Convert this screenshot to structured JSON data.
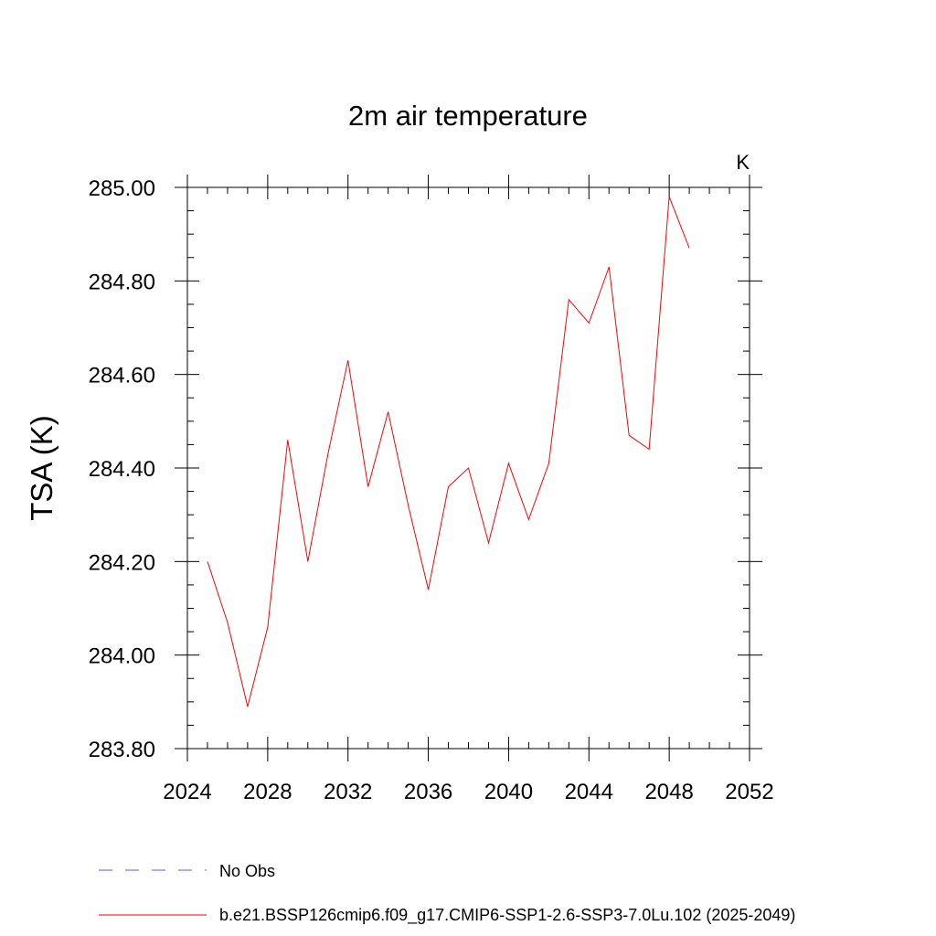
{
  "chart_data": {
    "type": "line",
    "title": "2m air temperature",
    "units_label": "K",
    "ylabel": "TSA  (K)",
    "xlabel": "",
    "xlim": [
      2024,
      2052
    ],
    "ylim": [
      283.8,
      285.0
    ],
    "x_ticks": [
      2024,
      2028,
      2032,
      2036,
      2040,
      2044,
      2048,
      2052
    ],
    "x_tick_labels": [
      "2024",
      "2028",
      "2032",
      "2036",
      "2040",
      "2044",
      "2048",
      "2052"
    ],
    "y_ticks": [
      283.8,
      284.0,
      284.2,
      284.4,
      284.6,
      284.8,
      285.0
    ],
    "y_tick_labels": [
      "283.80",
      "284.00",
      "284.20",
      "284.40",
      "284.60",
      "284.80",
      "285.00"
    ],
    "grid": false,
    "legend_position": "bottom",
    "series": [
      {
        "name": "b.e21.BSSP126cmip6.f09_g17.CMIP6-SSP1-2.6-SSP3-7.0Lu.102 (2025-2049)",
        "color": "#ff0000",
        "line_style": "solid",
        "x": [
          2025,
          2026,
          2027,
          2028,
          2029,
          2030,
          2031,
          2032,
          2033,
          2034,
          2035,
          2036,
          2037,
          2038,
          2039,
          2040,
          2041,
          2042,
          2043,
          2044,
          2045,
          2046,
          2047,
          2048,
          2049
        ],
        "y": [
          284.2,
          284.07,
          283.89,
          284.06,
          284.46,
          284.2,
          284.43,
          284.63,
          284.36,
          284.52,
          284.32,
          284.14,
          284.36,
          284.4,
          284.24,
          284.41,
          284.29,
          284.41,
          284.76,
          284.71,
          284.83,
          284.47,
          284.44,
          284.98,
          284.87
        ]
      }
    ],
    "legend": [
      {
        "label": "No Obs",
        "color": "#6a5acd",
        "line_style": "dashed"
      },
      {
        "label": "b.e21.BSSP126cmip6.f09_g17.CMIP6-SSP1-2.6-SSP3-7.0Lu.102 (2025-2049)",
        "color": "#ff0000",
        "line_style": "solid"
      }
    ]
  }
}
